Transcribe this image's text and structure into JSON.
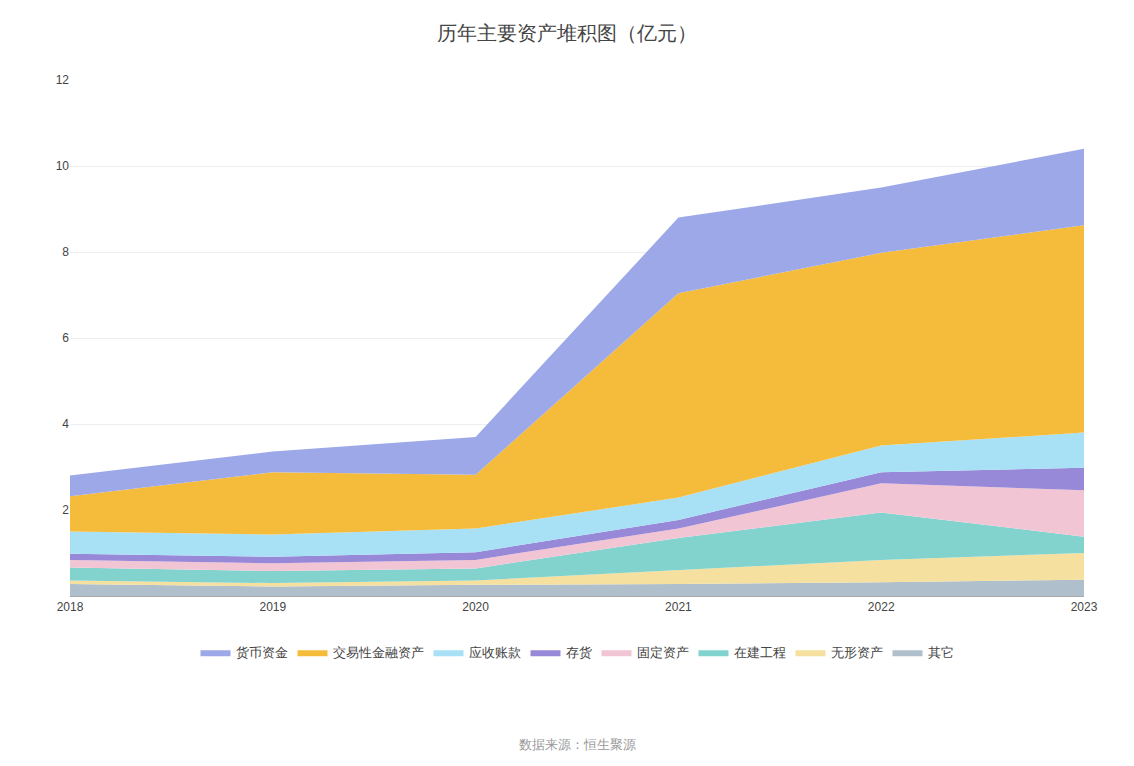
{
  "chart_data": {
    "type": "area",
    "stacked": true,
    "title": "历年主要资产堆积图（亿元）",
    "annotations": [
      "数据来源：恒生聚源"
    ],
    "x": [
      2018,
      2019,
      2020,
      2021,
      2022,
      2023
    ],
    "series": [
      {
        "name": "其它",
        "color": "#b0bfcc",
        "values": [
          0.28,
          0.22,
          0.26,
          0.28,
          0.32,
          0.38
        ]
      },
      {
        "name": "无形资产",
        "color": "#f5e0a0",
        "values": [
          0.08,
          0.08,
          0.1,
          0.32,
          0.52,
          0.62
        ]
      },
      {
        "name": "在建工程",
        "color": "#82d3cd",
        "values": [
          0.3,
          0.28,
          0.28,
          0.75,
          1.1,
          0.38
        ]
      },
      {
        "name": "固定资产",
        "color": "#f2c5d5",
        "values": [
          0.18,
          0.18,
          0.2,
          0.22,
          0.68,
          1.08
        ]
      },
      {
        "name": "存货",
        "color": "#9888d8",
        "values": [
          0.14,
          0.15,
          0.18,
          0.2,
          0.26,
          0.52
        ]
      },
      {
        "name": "应收账款",
        "color": "#a8e0f5",
        "values": [
          0.52,
          0.52,
          0.55,
          0.52,
          0.62,
          0.82
        ]
      },
      {
        "name": "交易性金融资产",
        "color": "#f5bc3c",
        "values": [
          0.82,
          1.45,
          1.25,
          4.75,
          4.48,
          4.82
        ]
      },
      {
        "name": "货币资金",
        "color": "#9da8e8",
        "values": [
          0.48,
          0.48,
          0.88,
          1.76,
          1.52,
          1.78
        ]
      }
    ],
    "xlim": [
      2018,
      2023
    ],
    "xticks": [
      2018,
      2019,
      2020,
      2021,
      2022,
      2023
    ],
    "ylim": [
      0,
      12
    ],
    "yticks": [
      2,
      4,
      6,
      8,
      10,
      12
    ],
    "grid": true,
    "legend": "bottom"
  }
}
